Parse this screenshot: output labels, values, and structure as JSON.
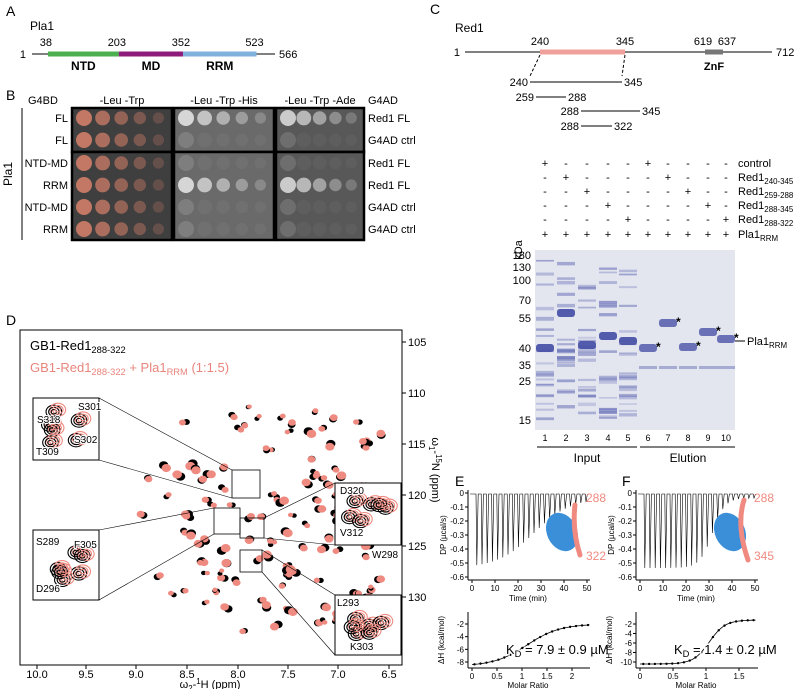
{
  "panels": {
    "A": {
      "letter": "A",
      "protein": "Pla1",
      "positions": [
        "1",
        "38",
        "203",
        "352",
        "523",
        "566"
      ],
      "domains": [
        "NTD",
        "MD",
        "RRM"
      ]
    },
    "B": {
      "letter": "B",
      "bd": "G4BD",
      "media": [
        "-Leu -Trp",
        "-Leu -Trp -His",
        "-Leu -Trp -Ade"
      ],
      "ad": "G4AD",
      "side": "Pla1",
      "rows": [
        [
          "FL",
          "Red1 FL"
        ],
        [
          "FL",
          "G4AD ctrl"
        ],
        [
          "NTD-MD",
          "Red1 FL"
        ],
        [
          "RRM",
          "Red1 FL"
        ],
        [
          "NTD-MD",
          "G4AD ctrl"
        ],
        [
          "RRM",
          "G4AD ctrl"
        ]
      ]
    },
    "C": {
      "letter": "C",
      "protein": "Red1",
      "positions": [
        "1",
        "240",
        "345",
        "619",
        "637",
        "712"
      ],
      "domain": "ZnF",
      "constructs": [
        [
          "240",
          "345"
        ],
        [
          "259",
          "288"
        ],
        [
          "288",
          "345"
        ],
        [
          "288",
          "322"
        ]
      ],
      "legend": [
        [
          {
            "text": "control"
          }
        ],
        [
          {
            "text": "Red1",
            "sub": "240-345"
          }
        ],
        [
          {
            "text": "Red1",
            "sub": "259-288"
          }
        ],
        [
          {
            "text": "Red1",
            "sub": "288-345"
          }
        ],
        [
          {
            "text": "Red1",
            "sub": "288-322"
          }
        ],
        [
          {
            "text": "Pla1",
            "sub": "RRM"
          }
        ]
      ],
      "matrix": [
        [
          "+",
          "-",
          "-",
          "-",
          "-",
          "+",
          "-",
          "-",
          "-",
          "-"
        ],
        [
          "-",
          "+",
          "-",
          "-",
          "-",
          "-",
          "+",
          "-",
          "-",
          "-"
        ],
        [
          "-",
          "-",
          "+",
          "-",
          "-",
          "-",
          "-",
          "+",
          "-",
          "-"
        ],
        [
          "-",
          "-",
          "-",
          "+",
          "-",
          "-",
          "-",
          "-",
          "+",
          "-"
        ],
        [
          "-",
          "-",
          "-",
          "-",
          "+",
          "-",
          "-",
          "-",
          "-",
          "+"
        ],
        [
          "+",
          "+",
          "+",
          "+",
          "+",
          "+",
          "+",
          "+",
          "+",
          "+"
        ]
      ],
      "kda": "kDa",
      "markers": [
        "180",
        "130",
        "100",
        "70",
        "55",
        "40",
        "35",
        "25",
        "15"
      ],
      "lanes": [
        "1",
        "2",
        "3",
        "4",
        "5",
        "6",
        "7",
        "8",
        "9",
        "10"
      ],
      "groups": [
        "Input",
        "Elution"
      ],
      "band_label": [
        {
          "text": "Pla1",
          "sub": "RRM"
        }
      ],
      "asterisk": "*"
    },
    "D": {
      "letter": "D",
      "legend": [
        [
          {
            "text": "GB1-Red1",
            "sub": "288-322"
          }
        ],
        [
          {
            "text": "GB1-Red1",
            "sub": "288-322"
          },
          {
            "text": " + Pla1",
            "sub": "RRM"
          },
          {
            "text": " (1:1.5)"
          }
        ]
      ],
      "xlabel": [
        {
          "text": "ω",
          "sub": "2"
        },
        {
          "text": "-",
          "sup": "1"
        },
        {
          "text": "H (ppm)"
        }
      ],
      "ylabel": [
        {
          "text": "ω",
          "sub": "1"
        },
        {
          "text": "-",
          "sup": "15"
        },
        {
          "text": "N (ppm)"
        }
      ],
      "xticks": [
        "10.0",
        "9.5",
        "9.0",
        "8.5",
        "8.0",
        "7.5",
        "7.0",
        "6.5"
      ],
      "yticks": [
        "105",
        "110",
        "115",
        "120",
        "125",
        "130"
      ],
      "insets": [
        [
          "S301",
          "S318",
          "S302",
          "T309"
        ],
        [
          "S289",
          "F305",
          "D296"
        ],
        [
          "D320",
          "V312",
          "W298"
        ],
        [
          "L293",
          "K303"
        ]
      ]
    },
    "E": {
      "letter": "E",
      "ends": [
        "288",
        "322"
      ],
      "dp_label": "DP (µcal/s)",
      "dp_ticks": [
        "0",
        "-0.1",
        "-0.2",
        "-0.3",
        "-0.4",
        "-0.5",
        "-0.6"
      ],
      "time_label": "Time (min)",
      "time_ticks": [
        "0",
        "10",
        "20",
        "30",
        "40",
        "50"
      ],
      "dh_label": "ΔH (kcal/mol)",
      "dh_ticks": [
        "-2",
        "-4",
        "-6",
        "-8"
      ],
      "ratio_label": "Molar Ratio",
      "ratio_ticks": [
        "0",
        "0.5",
        "1",
        "1.5",
        "2"
      ],
      "kd": [
        {
          "text": "K",
          "sub": "D"
        },
        {
          "text": " = 7.9 ± 0.9 µM"
        }
      ]
    },
    "F": {
      "letter": "F",
      "ends": [
        "288",
        "345"
      ],
      "dp_label": "DP (µcal/s)",
      "dp_ticks": [
        "0",
        "-0.1",
        "-0.2",
        "-0.3",
        "-0.4",
        "-0.5",
        "-0.6"
      ],
      "time_label": "Time (min)",
      "time_ticks": [
        "0",
        "10",
        "20",
        "30",
        "40",
        "50"
      ],
      "dh_label": "ΔH (kcal/mol)",
      "dh_ticks": [
        "-2",
        "-4",
        "-6",
        "-8",
        "-10"
      ],
      "ratio_label": "Molar Ratio",
      "ratio_ticks": [
        "0",
        "0.5",
        "1",
        "1.5"
      ],
      "kd": [
        {
          "text": "K",
          "sub": "D"
        },
        {
          "text": " = 1.4 ± 0.2 µM"
        }
      ]
    }
  }
}
